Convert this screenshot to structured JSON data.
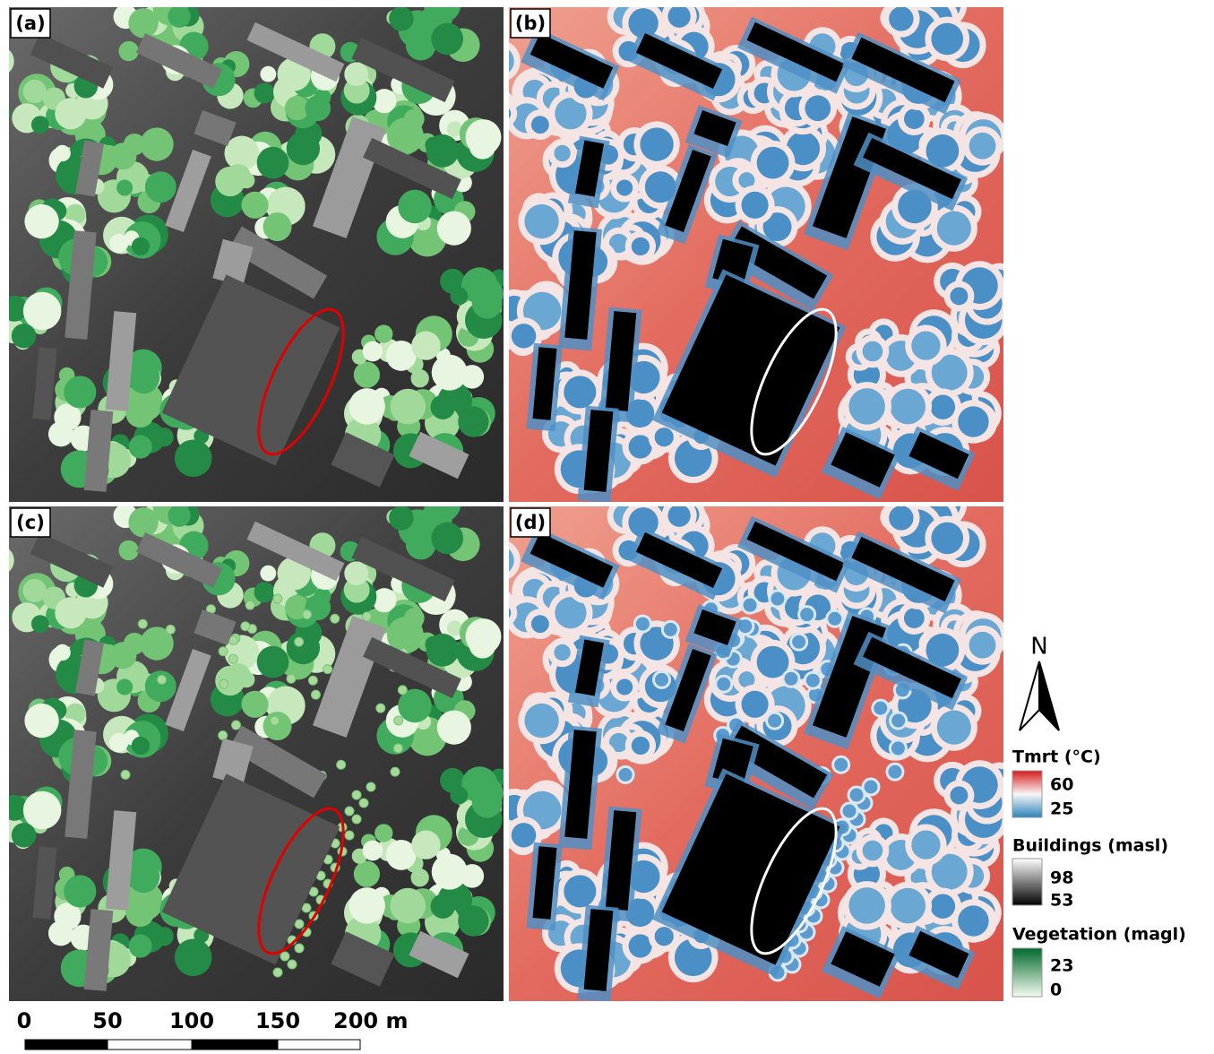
{
  "panels": [
    {
      "label": "(a)"
    },
    {
      "label": "(b)"
    },
    {
      "label": "(c)"
    },
    {
      "label": "(d)"
    }
  ],
  "north_arrow": {
    "label": "N"
  },
  "legend": {
    "tmrt": {
      "title": "Tmrt (°C)",
      "max": "60",
      "min": "25"
    },
    "buildings": {
      "title": "Buildings (masl)",
      "max": "98",
      "min": "53"
    },
    "vegetation": {
      "title": "Vegetation (magl)",
      "max": "23",
      "min": "0"
    }
  },
  "scale_bar": {
    "labels": [
      "0",
      "50",
      "100",
      "150",
      "200 m"
    ]
  }
}
